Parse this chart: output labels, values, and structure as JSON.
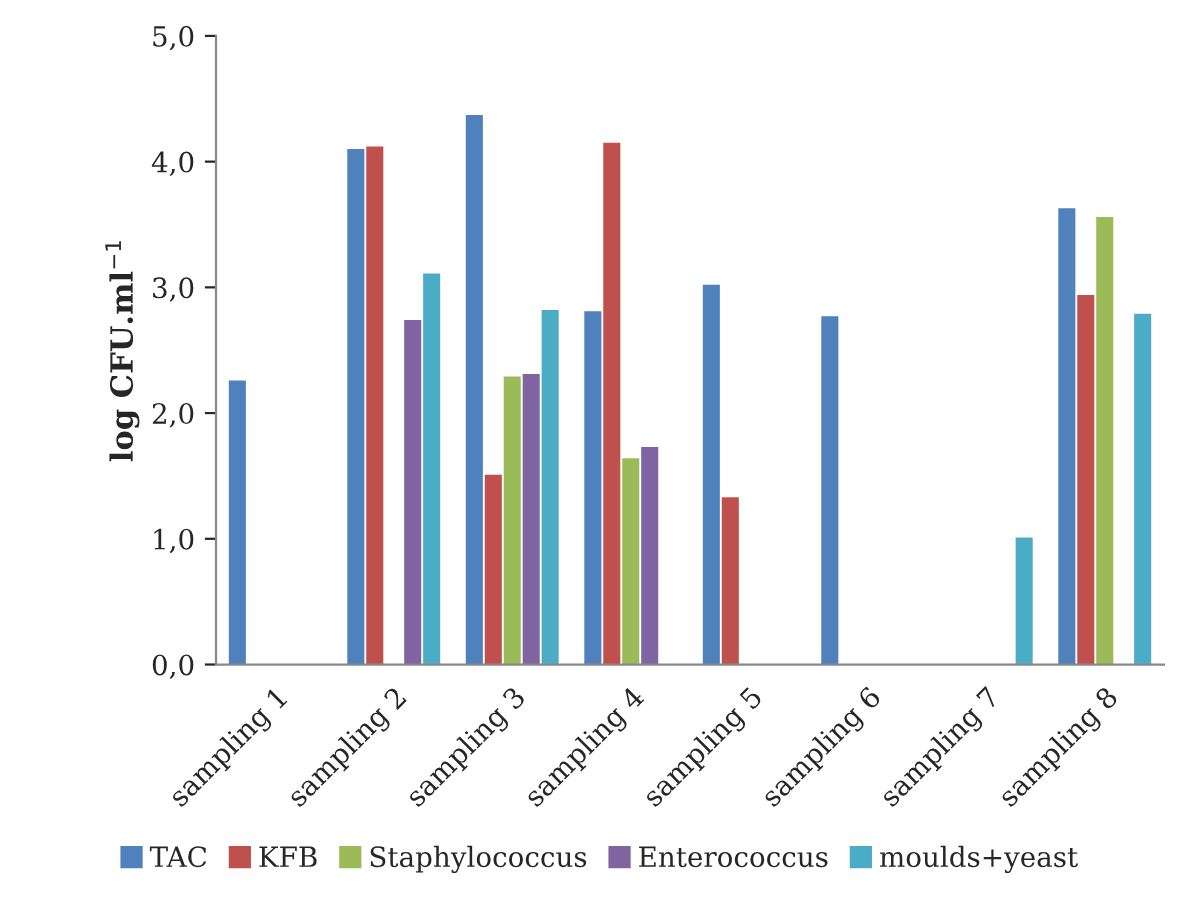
{
  "chart_data": {
    "type": "bar",
    "ylabel": "log CFU.ml$^{−1}$",
    "categories": [
      "sampling 1",
      "sampling 2",
      "sampling 3",
      "sampling 4",
      "sampling 5",
      "sampling 6",
      "sampling 7",
      "sampling 8"
    ],
    "series": [
      {
        "name": "TAC",
        "color": "#4f81bd",
        "values": [
          2.26,
          4.1,
          4.37,
          2.81,
          3.02,
          2.77,
          0,
          3.63
        ]
      },
      {
        "name": "KFB",
        "color": "#c0504d",
        "values": [
          0,
          4.12,
          1.51,
          4.15,
          1.33,
          0,
          0,
          2.94
        ]
      },
      {
        "name": "Staphylococcus",
        "color": "#9bbb59",
        "values": [
          0,
          0,
          2.29,
          1.64,
          0,
          0,
          0,
          3.56
        ]
      },
      {
        "name": "Enterococcus",
        "color": "#8064a2",
        "values": [
          0,
          2.74,
          2.31,
          1.73,
          0,
          0,
          0,
          0
        ]
      },
      {
        "name": "moulds+yeast",
        "color": "#4bacc6",
        "values": [
          0,
          3.11,
          2.82,
          0,
          0,
          0,
          1.01,
          2.79
        ]
      }
    ],
    "ylim": [
      0,
      5
    ],
    "yticks": [
      {
        "value": 0,
        "label": "0,0"
      },
      {
        "value": 1,
        "label": "1,0"
      },
      {
        "value": 2,
        "label": "2,0"
      },
      {
        "value": 3,
        "label": "3,0"
      },
      {
        "value": 4,
        "label": "4,0"
      },
      {
        "value": 5,
        "label": "5,0"
      }
    ],
    "grid": false,
    "legend": "bottom"
  }
}
